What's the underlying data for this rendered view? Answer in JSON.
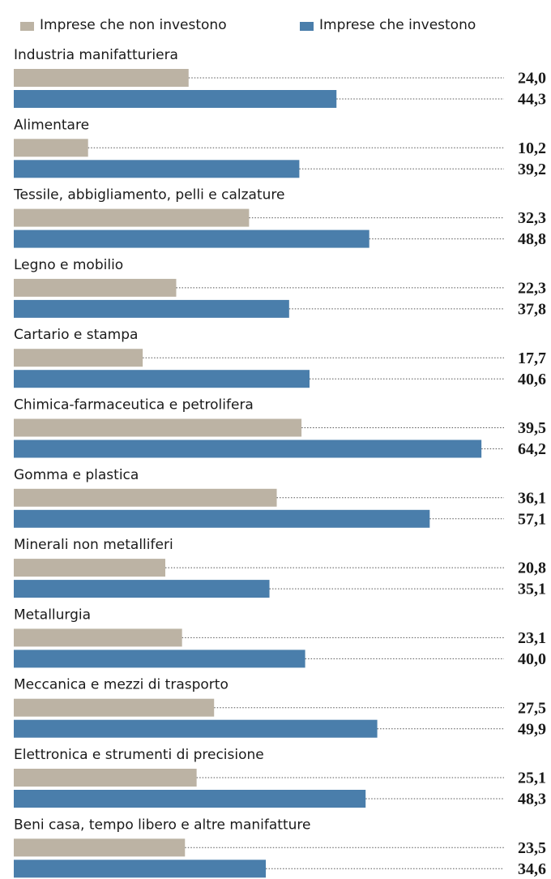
{
  "chart_data": {
    "type": "bar",
    "orientation": "horizontal",
    "categories": [
      "Industria manifatturiera",
      "Alimentare",
      "Tessile, abbigliamento, pelli e calzature",
      "Legno e mobilio",
      "Cartario e stampa",
      "Chimica-farmaceutica e petrolifera",
      "Gomma e plastica",
      "Minerali non metalliferi",
      "Metallurgia",
      "Meccanica e mezzi di trasporto",
      "Elettronica e strumenti di precisione",
      "Beni casa, tempo libero e altre manifatture"
    ],
    "series": [
      {
        "name": "Imprese che non investono",
        "color": "#bcb3a4",
        "values": [
          24.0,
          10.2,
          32.3,
          22.3,
          17.7,
          39.5,
          36.1,
          20.8,
          23.1,
          27.5,
          25.1,
          23.5
        ],
        "value_labels": [
          "24,0",
          "10,2",
          "32,3",
          "22,3",
          "17,7",
          "39,5",
          "36,1",
          "20,8",
          "23,1",
          "27,5",
          "25,1",
          "23,5"
        ]
      },
      {
        "name": "Imprese che investono",
        "color": "#4a7eab",
        "values": [
          44.3,
          39.2,
          48.8,
          37.8,
          40.6,
          64.2,
          57.1,
          35.1,
          40.0,
          49.9,
          48.3,
          34.6
        ],
        "value_labels": [
          "44,3",
          "39,2",
          "48,8",
          "37,8",
          "40,6",
          "64,2",
          "57,1",
          "35,1",
          "40,0",
          "49,9",
          "48,3",
          "34,6"
        ]
      }
    ]
  }
}
